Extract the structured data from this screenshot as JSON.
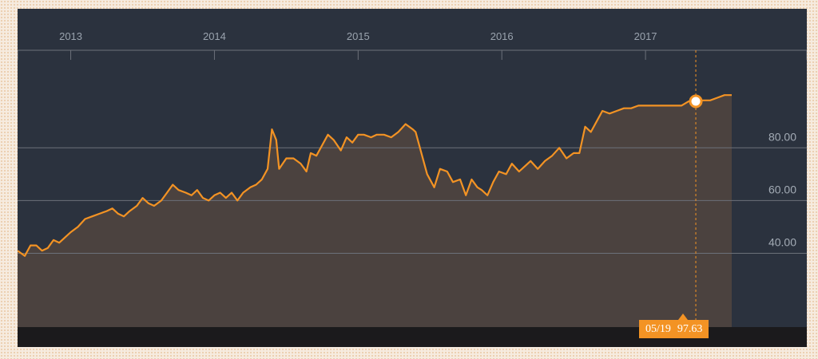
{
  "chart_data": {
    "type": "area",
    "x_axis_labels": [
      "2013",
      "2014",
      "2015",
      "2016",
      "2017"
    ],
    "y_ticks": [
      40,
      60,
      80
    ],
    "y_tick_labels": [
      "40.00",
      "60.00",
      "80.00"
    ],
    "ylim": [
      12,
      117
    ],
    "xlim": [
      2012.63,
      2017.6
    ],
    "grid": "horizontal",
    "series": [
      {
        "color": "#f39324",
        "fill": "#4b423f",
        "points": [
          [
            2012.63,
            41
          ],
          [
            2012.68,
            39
          ],
          [
            2012.72,
            43
          ],
          [
            2012.76,
            43
          ],
          [
            2012.8,
            41
          ],
          [
            2012.84,
            42
          ],
          [
            2012.88,
            45
          ],
          [
            2012.92,
            44
          ],
          [
            2012.96,
            46
          ],
          [
            2013.0,
            48
          ],
          [
            2013.05,
            50
          ],
          [
            2013.1,
            53
          ],
          [
            2013.15,
            54
          ],
          [
            2013.2,
            55
          ],
          [
            2013.25,
            56
          ],
          [
            2013.29,
            57
          ],
          [
            2013.33,
            55
          ],
          [
            2013.37,
            54
          ],
          [
            2013.41,
            56
          ],
          [
            2013.46,
            58
          ],
          [
            2013.5,
            61
          ],
          [
            2013.54,
            59
          ],
          [
            2013.58,
            58
          ],
          [
            2013.63,
            60
          ],
          [
            2013.67,
            63
          ],
          [
            2013.71,
            66
          ],
          [
            2013.75,
            64
          ],
          [
            2013.8,
            63
          ],
          [
            2013.84,
            62
          ],
          [
            2013.88,
            64
          ],
          [
            2013.92,
            61
          ],
          [
            2013.96,
            60
          ],
          [
            2014.0,
            62
          ],
          [
            2014.04,
            63
          ],
          [
            2014.08,
            61
          ],
          [
            2014.12,
            63
          ],
          [
            2014.16,
            60
          ],
          [
            2014.2,
            63
          ],
          [
            2014.25,
            65
          ],
          [
            2014.29,
            66
          ],
          [
            2014.33,
            68
          ],
          [
            2014.37,
            72
          ],
          [
            2014.4,
            87
          ],
          [
            2014.43,
            83
          ],
          [
            2014.45,
            72
          ],
          [
            2014.5,
            76
          ],
          [
            2014.55,
            76
          ],
          [
            2014.6,
            74
          ],
          [
            2014.64,
            71
          ],
          [
            2014.67,
            78
          ],
          [
            2014.71,
            77
          ],
          [
            2014.75,
            81
          ],
          [
            2014.79,
            85
          ],
          [
            2014.83,
            83
          ],
          [
            2014.88,
            79
          ],
          [
            2014.92,
            84
          ],
          [
            2014.96,
            82
          ],
          [
            2015.0,
            85
          ],
          [
            2015.04,
            85
          ],
          [
            2015.09,
            84
          ],
          [
            2015.13,
            85
          ],
          [
            2015.18,
            85
          ],
          [
            2015.23,
            84
          ],
          [
            2015.28,
            86
          ],
          [
            2015.33,
            89
          ],
          [
            2015.38,
            87
          ],
          [
            2015.4,
            86
          ],
          [
            2015.44,
            78
          ],
          [
            2015.48,
            70
          ],
          [
            2015.53,
            65
          ],
          [
            2015.57,
            72
          ],
          [
            2015.62,
            71
          ],
          [
            2015.66,
            67
          ],
          [
            2015.71,
            68
          ],
          [
            2015.75,
            62
          ],
          [
            2015.79,
            68
          ],
          [
            2015.83,
            65
          ],
          [
            2015.86,
            64
          ],
          [
            2015.9,
            62
          ],
          [
            2015.94,
            67
          ],
          [
            2015.98,
            71
          ],
          [
            2016.03,
            70
          ],
          [
            2016.07,
            74
          ],
          [
            2016.12,
            71
          ],
          [
            2016.16,
            73
          ],
          [
            2016.2,
            75
          ],
          [
            2016.25,
            72
          ],
          [
            2016.3,
            75
          ],
          [
            2016.35,
            77
          ],
          [
            2016.4,
            80
          ],
          [
            2016.45,
            76
          ],
          [
            2016.5,
            78
          ],
          [
            2016.54,
            78
          ],
          [
            2016.58,
            88
          ],
          [
            2016.62,
            86
          ],
          [
            2016.66,
            90
          ],
          [
            2016.7,
            94
          ],
          [
            2016.75,
            93
          ],
          [
            2016.8,
            94
          ],
          [
            2016.85,
            95
          ],
          [
            2016.9,
            95
          ],
          [
            2016.95,
            96
          ],
          [
            2017.0,
            96
          ],
          [
            2017.05,
            96
          ],
          [
            2017.1,
            96
          ],
          [
            2017.15,
            96
          ],
          [
            2017.2,
            96
          ],
          [
            2017.25,
            96
          ],
          [
            2017.3,
            97.6
          ],
          [
            2017.35,
            98
          ],
          [
            2017.4,
            98
          ],
          [
            2017.45,
            98
          ],
          [
            2017.5,
            99
          ],
          [
            2017.55,
            100
          ],
          [
            2017.6,
            100
          ]
        ]
      }
    ]
  },
  "tooltip": {
    "date": "05/19",
    "value": "97.63",
    "x": 2017.35,
    "y": 97.63
  },
  "colors": {
    "background": "#2b323e",
    "line": "#f39324",
    "area": "#4b423f",
    "grid": "#6c717a",
    "bottom_strip": "#1b1a1c"
  }
}
